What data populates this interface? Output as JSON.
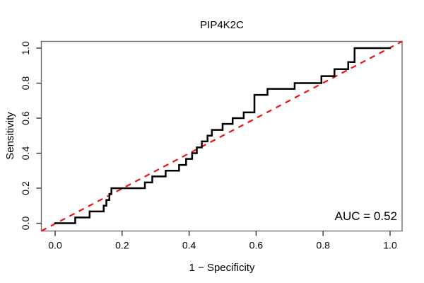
{
  "figure": {
    "title": "PIP4K2C",
    "xlabel": "1 − Specificity",
    "ylabel": "Sensitivity",
    "annotation": "AUC = 0.52"
  },
  "chart_data": {
    "type": "line",
    "subtype": "roc-step-curve",
    "title": "PIP4K2C",
    "xlabel": "1 − Specificity",
    "ylabel": "Sensitivity",
    "xlim": [
      0,
      1
    ],
    "ylim": [
      0,
      1
    ],
    "grid": false,
    "legend": "none",
    "xticks": [
      "0.0",
      "0.2",
      "0.4",
      "0.6",
      "0.8",
      "1.0"
    ],
    "yticks": [
      "0.0",
      "0.2",
      "0.4",
      "0.6",
      "0.8",
      "1.0"
    ],
    "auc": 0.52,
    "annotation": "AUC = 0.52",
    "series": [
      {
        "name": "ROC curve",
        "style": "step",
        "color": "#000000",
        "line_width": 2.5,
        "points": [
          [
            0.0,
            0.0
          ],
          [
            0.06,
            0.033
          ],
          [
            0.103,
            0.067
          ],
          [
            0.145,
            0.1
          ],
          [
            0.153,
            0.133
          ],
          [
            0.162,
            0.167
          ],
          [
            0.168,
            0.2
          ],
          [
            0.268,
            0.233
          ],
          [
            0.29,
            0.267
          ],
          [
            0.33,
            0.3
          ],
          [
            0.37,
            0.333
          ],
          [
            0.391,
            0.367
          ],
          [
            0.409,
            0.4
          ],
          [
            0.423,
            0.433
          ],
          [
            0.438,
            0.467
          ],
          [
            0.455,
            0.5
          ],
          [
            0.468,
            0.533
          ],
          [
            0.5,
            0.567
          ],
          [
            0.53,
            0.6
          ],
          [
            0.563,
            0.633
          ],
          [
            0.595,
            0.733
          ],
          [
            0.634,
            0.767
          ],
          [
            0.715,
            0.8
          ],
          [
            0.795,
            0.84
          ],
          [
            0.834,
            0.88
          ],
          [
            0.875,
            0.92
          ],
          [
            0.894,
            1.0
          ],
          [
            1.0,
            1.0
          ]
        ]
      },
      {
        "name": "chance diagonal",
        "style": "dashed",
        "color": "#ee1111",
        "line_width": 2.2,
        "points": [
          [
            0,
            0
          ],
          [
            1,
            1
          ]
        ]
      }
    ]
  }
}
